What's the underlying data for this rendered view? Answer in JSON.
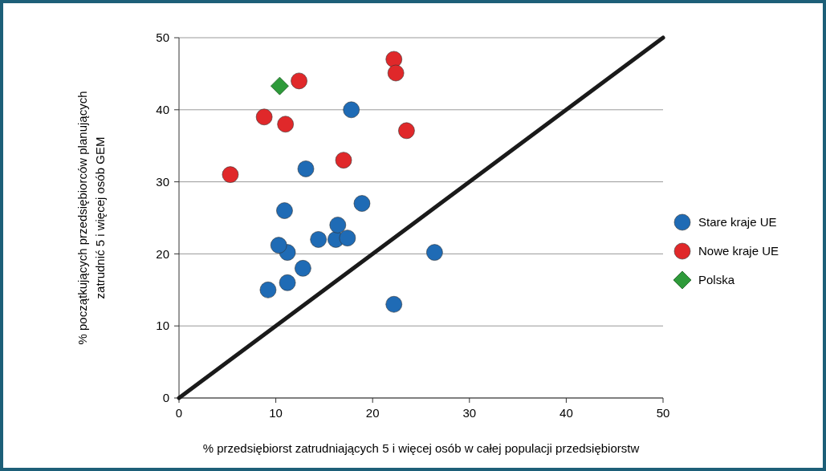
{
  "chart_data": {
    "type": "scatter",
    "xlabel": "% przedsiębiorst zatrudniających 5 i więcej osób w całej populacji przedsiębiorstw",
    "ylabel": "% początkujących przedsiębiorców planujących\nzatrudnić 5 i więcej osób GEM",
    "xlim": [
      0,
      50
    ],
    "ylim": [
      0,
      50
    ],
    "xticks": [
      0,
      10,
      20,
      30,
      40,
      50
    ],
    "yticks": [
      0,
      10,
      20,
      30,
      40,
      50
    ],
    "grid": "y",
    "legend": "right",
    "series": [
      {
        "type": "line",
        "color": "#1a1a1a",
        "x": [
          0,
          50
        ],
        "values": [
          0,
          50
        ],
        "marker": "none"
      },
      {
        "name": "Stare kraje UE",
        "color": "#1f6bb5",
        "marker": "circle",
        "x": [
          9.2,
          11.2,
          12.8,
          11.2,
          10.3,
          10.9,
          13.1,
          14.4,
          16.2,
          17.4,
          16.4,
          18.9,
          17.8,
          22.2,
          26.4
        ],
        "values": [
          15,
          16,
          18,
          20.2,
          21.2,
          26,
          31.8,
          22,
          22,
          22.2,
          24,
          27,
          40,
          13,
          20.2
        ]
      },
      {
        "name": "Nowe kraje UE",
        "color": "#e0282a",
        "marker": "circle",
        "x": [
          5.3,
          8.8,
          11,
          12.4,
          17,
          22.2,
          22.4,
          23.5
        ],
        "values": [
          31,
          39,
          38,
          44,
          33,
          47,
          45.1,
          37.1
        ]
      },
      {
        "name": "Polska",
        "color": "#2e9a3a",
        "marker": "diamond",
        "x": [
          10.4
        ],
        "values": [
          43.3
        ]
      }
    ]
  }
}
